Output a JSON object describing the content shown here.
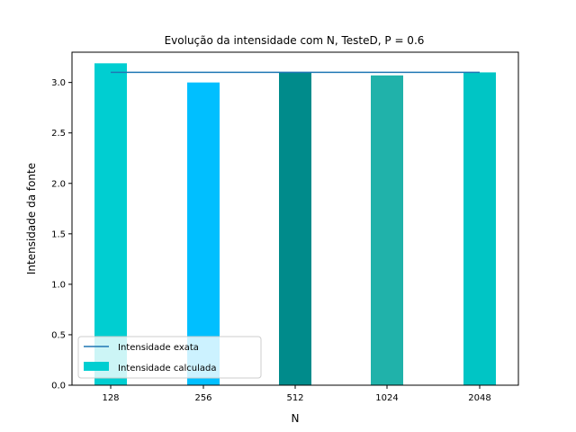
{
  "chart_data": {
    "type": "bar",
    "title": "Evolução da intensidade com N, TesteD, P = 0.6",
    "xlabel": "N",
    "ylabel": "Intensidade da fonte",
    "categories": [
      "128",
      "256",
      "512",
      "1024",
      "2048"
    ],
    "series": [
      {
        "name": "Intensidade calculada",
        "type": "bar",
        "values": [
          3.19,
          3.0,
          3.1,
          3.07,
          3.1
        ],
        "colors": [
          "#00ced1",
          "#00bfff",
          "#008b8b",
          "#20b2aa",
          "#00c5c5"
        ]
      },
      {
        "name": "Intensidade exata",
        "type": "line",
        "values": [
          3.1,
          3.1,
          3.1,
          3.1,
          3.1
        ],
        "color": "#1f77b4"
      }
    ],
    "ylim": [
      0,
      3.3
    ],
    "yticks": [
      "0.0",
      "0.5",
      "1.0",
      "1.5",
      "2.0",
      "2.5",
      "3.0"
    ],
    "legend_position": "lower-left",
    "grid": false
  }
}
